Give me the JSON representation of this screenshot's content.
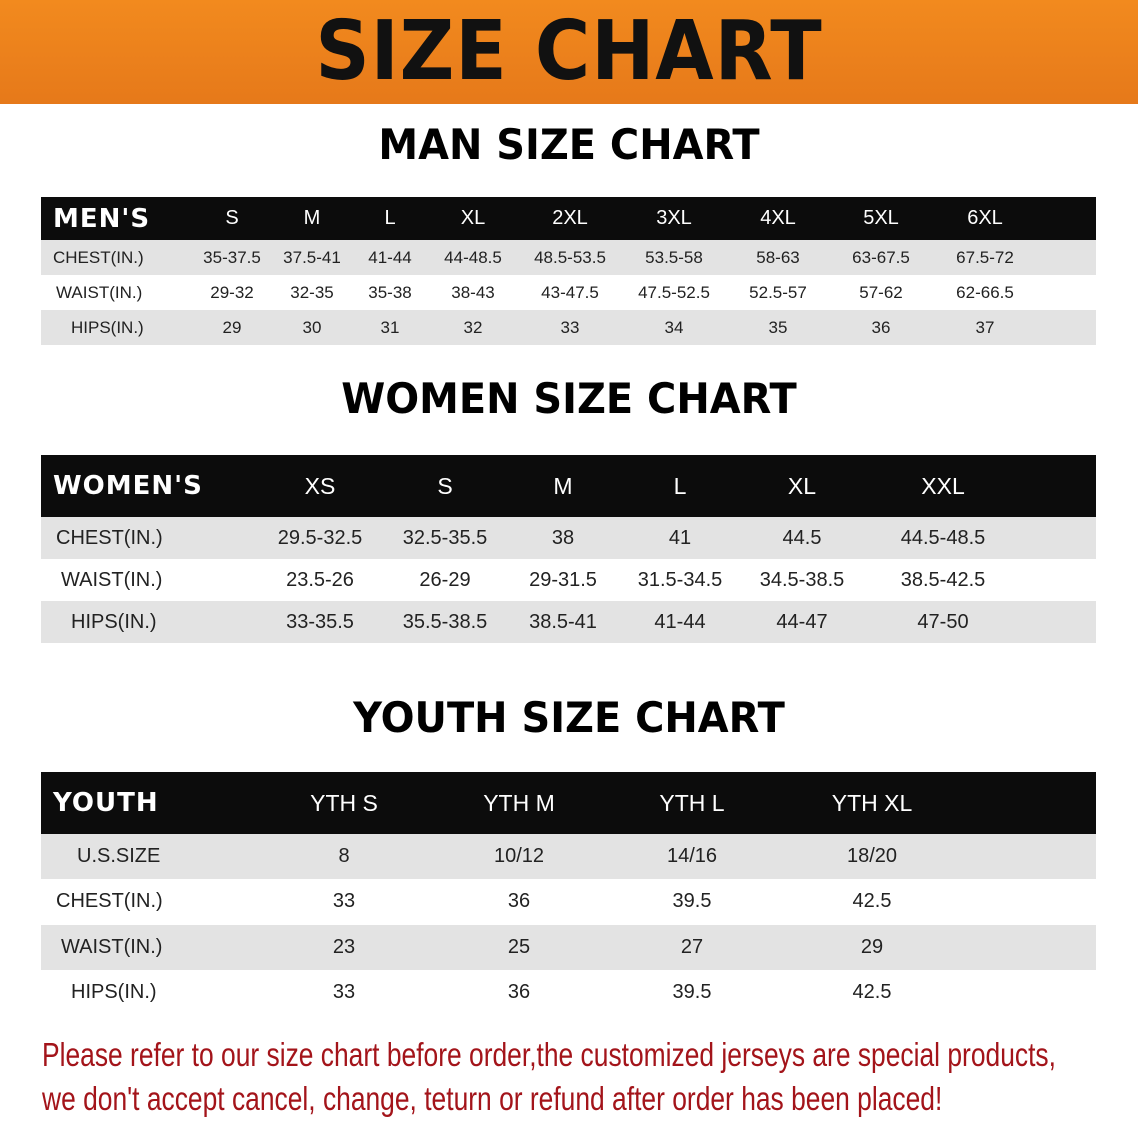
{
  "banner_title": "SIZE CHART",
  "men": {
    "title": "MAN SIZE CHART",
    "header_label": "MEN'S",
    "sizes": [
      "S",
      "M",
      "L",
      "XL",
      "2XL",
      "3XL",
      "4XL",
      "5XL",
      "6XL"
    ],
    "rows": [
      {
        "label": "CHEST(IN.)",
        "values": [
          "35-37.5",
          "37.5-41",
          "41-44",
          "44-48.5",
          "48.5-53.5",
          "53.5-58",
          "58-63",
          "63-67.5",
          "67.5-72"
        ]
      },
      {
        "label": "WAIST(IN.)",
        "values": [
          "29-32",
          "32-35",
          "35-38",
          "38-43",
          "43-47.5",
          "47.5-52.5",
          "52.5-57",
          "57-62",
          "62-66.5"
        ]
      },
      {
        "label": "HIPS(IN.)",
        "values": [
          "29",
          "30",
          "31",
          "32",
          "33",
          "34",
          "35",
          "36",
          "37"
        ]
      }
    ]
  },
  "women": {
    "title": "WOMEN SIZE CHART",
    "header_label": "WOMEN'S",
    "sizes": [
      "XS",
      "S",
      "M",
      "L",
      "XL",
      "XXL"
    ],
    "rows": [
      {
        "label": "CHEST(IN.)",
        "values": [
          "29.5-32.5",
          "32.5-35.5",
          "38",
          "41",
          "44.5",
          "44.5-48.5"
        ]
      },
      {
        "label": "WAIST(IN.)",
        "values": [
          "23.5-26",
          "26-29",
          "29-31.5",
          "31.5-34.5",
          "34.5-38.5",
          "38.5-42.5"
        ]
      },
      {
        "label": "HIPS(IN.)",
        "values": [
          "33-35.5",
          "35.5-38.5",
          "38.5-41",
          "41-44",
          "44-47",
          "47-50"
        ]
      }
    ]
  },
  "youth": {
    "title": "YOUTH SIZE CHART",
    "header_label": "YOUTH",
    "sizes": [
      "YTH S",
      "YTH M",
      "YTH L",
      "YTH XL"
    ],
    "rows": [
      {
        "label": "U.S.SIZE",
        "values": [
          "8",
          "10/12",
          "14/16",
          "18/20"
        ]
      },
      {
        "label": "CHEST(IN.)",
        "values": [
          "33",
          "36",
          "39.5",
          "42.5"
        ]
      },
      {
        "label": "WAIST(IN.)",
        "values": [
          "23",
          "25",
          "27",
          "29"
        ]
      },
      {
        "label": "HIPS(IN.)",
        "values": [
          "33",
          "36",
          "39.5",
          "42.5"
        ]
      }
    ]
  },
  "notice": {
    "line1": "Please refer to our size chart before order,the customized jerseys are special products,",
    "line2": "we don't accept cancel, change, teturn or refund after order has been placed!"
  },
  "colors": {
    "banner": "#f28a1e",
    "notice": "#a3141a",
    "header_bg": "#0c0c0c",
    "row_gray": "#e3e3e3"
  }
}
